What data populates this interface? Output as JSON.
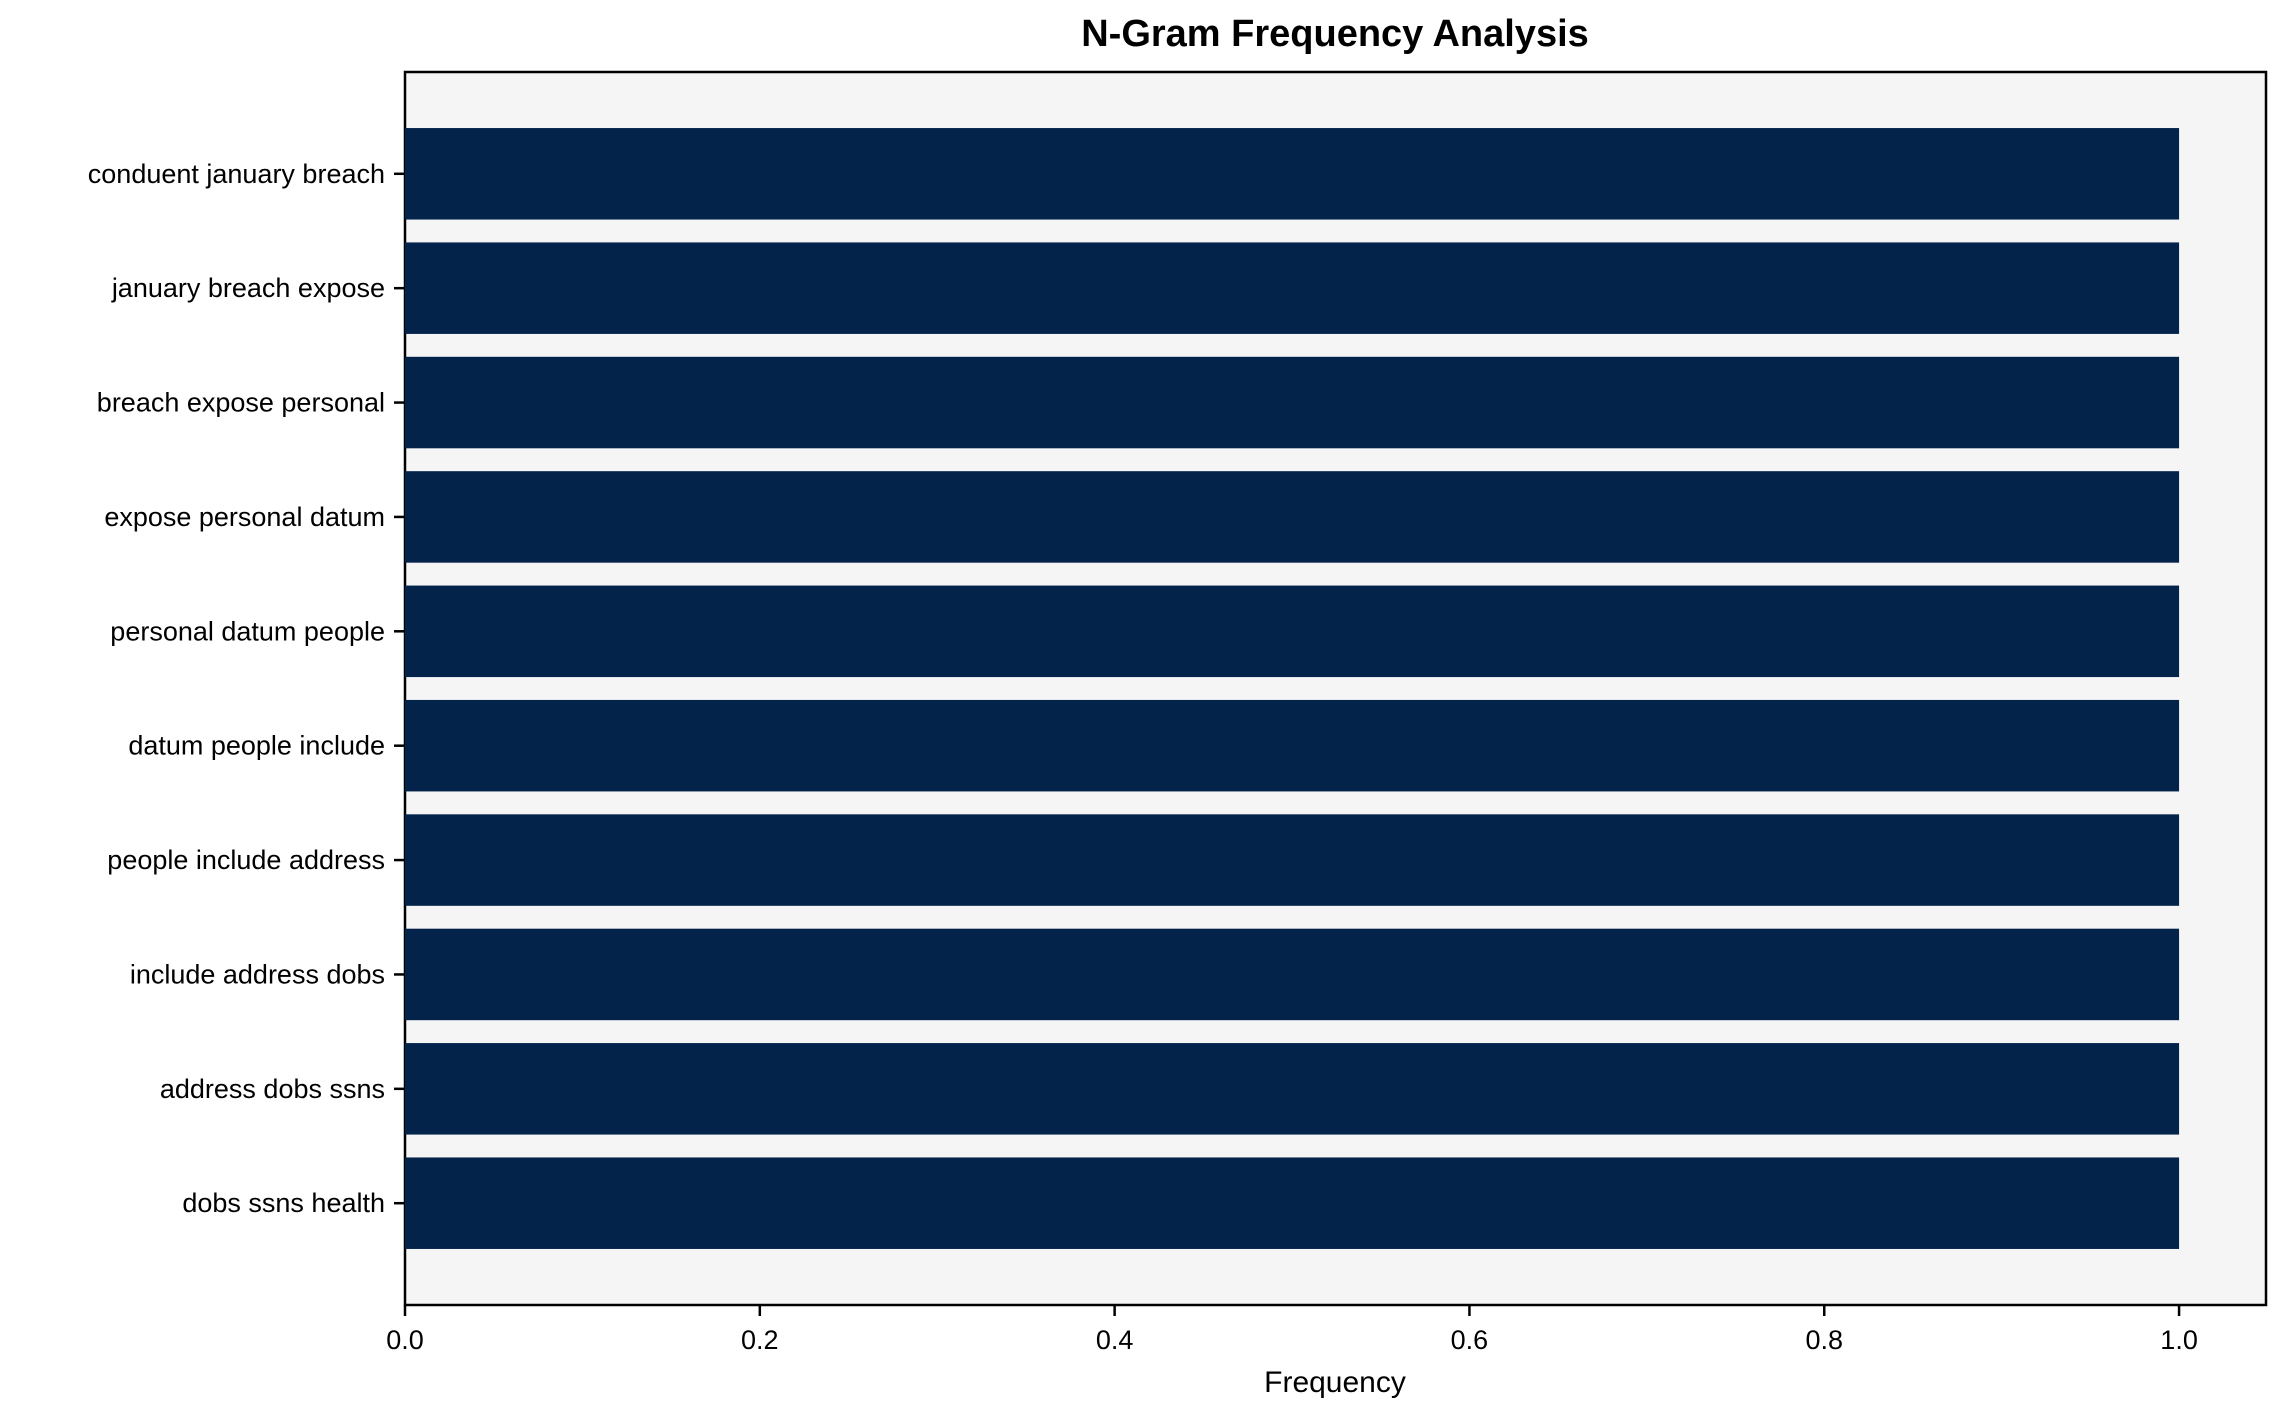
{
  "page": {
    "title": "N-Gram Frequency Analysis"
  },
  "chart_data": {
    "type": "bar",
    "orientation": "horizontal",
    "title": "N-Gram Frequency Analysis",
    "xlabel": "Frequency",
    "ylabel": "",
    "categories": [
      "conduent january breach",
      "january breach expose",
      "breach expose personal",
      "expose personal datum",
      "personal datum people",
      "datum people include",
      "people include address",
      "include address dobs",
      "address dobs ssns",
      "dobs ssns health"
    ],
    "values": [
      1.0,
      1.0,
      1.0,
      1.0,
      1.0,
      1.0,
      1.0,
      1.0,
      1.0,
      1.0
    ],
    "xticks": [
      "0.0",
      "0.2",
      "0.4",
      "0.6",
      "0.8",
      "1.0"
    ],
    "xtick_values": [
      0.0,
      0.2,
      0.4,
      0.6,
      0.8,
      1.0
    ],
    "xlim": [
      0,
      1.049
    ],
    "grid": false,
    "legend": false,
    "value_labels": false,
    "colors": {
      "bar": "#04234b",
      "plot_background": "#f5f5f6",
      "figure_background": "#ffffff",
      "axis": "#000000",
      "text": "#000000"
    }
  }
}
